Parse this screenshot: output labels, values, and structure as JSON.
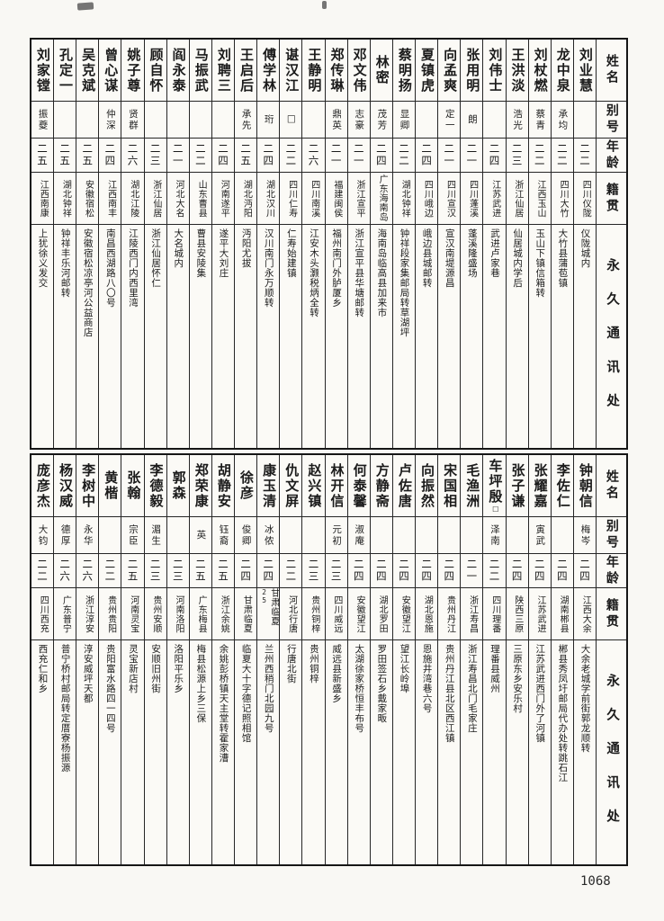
{
  "page": {
    "number": "1068"
  },
  "header_labels": {
    "name": "姓名",
    "alias": "别号",
    "age": "年龄",
    "native": "籍贯",
    "address": "永久通讯处"
  },
  "tables": [
    {
      "persons": [
        {
          "name": "刘业慧",
          "alias": "",
          "age": "二二",
          "native": "四川仪陇",
          "address": "仪陇城内"
        },
        {
          "name": "龙中泉",
          "alias": "承均",
          "age": "二二",
          "native": "四川大竹",
          "address": "大竹县蒲苞镇"
        },
        {
          "name": "刘杖燃",
          "alias": "蔡青",
          "age": "二二",
          "native": "江西玉山",
          "address": "玉山下镇信箱转"
        },
        {
          "name": "王洪淡",
          "alias": "浩光",
          "age": "二三",
          "native": "浙江仙居",
          "address": "仙居城内学后"
        },
        {
          "name": "刘伟士",
          "alias": "",
          "age": "二四",
          "native": "江苏武进",
          "address": "武进卢家巷"
        },
        {
          "name": "张用明",
          "alias": "朗",
          "age": "二一",
          "native": "四川蓬溪",
          "address": "蓬溪隆盛场"
        },
        {
          "name": "向孟爽",
          "alias": "定一",
          "age": "二一",
          "native": "四川宣汉",
          "address": "宣汉南堤源昌"
        },
        {
          "name": "夏镇虎",
          "alias": "",
          "age": "二四",
          "native": "四川峨边",
          "address": "峨边县城邮转"
        },
        {
          "name": "蔡明扬",
          "alias": "显卿",
          "age": "二二",
          "native": "湖北钟祥",
          "address": "钟祥段家集邮局转草湖坪"
        },
        {
          "name": "林密",
          "alias": "茂芳",
          "age": "二四",
          "native": "广东海南岛",
          "address": "海南岛临高县加来市"
        },
        {
          "name": "邓文伟",
          "alias": "志豪",
          "age": "二一",
          "native": "浙江宣平",
          "address": "浙江宣平县华塘邮转"
        },
        {
          "name": "郑传琳",
          "alias": "鼎英",
          "age": "二一",
          "native": "福建闽侯",
          "address": "福州南门外胪厦乡"
        },
        {
          "name": "王静明",
          "alias": "",
          "age": "二六",
          "native": "四川南溪",
          "address": "江安木头灏税炳全转"
        },
        {
          "name": "谌汉江",
          "alias": "□",
          "age": "二二",
          "native": "四川仁寿",
          "address": "仁寿始建镇"
        },
        {
          "name": "傅学林",
          "alias": "珩",
          "age": "二四",
          "native": "湖北汉川",
          "address": "汉川南门永万顺转"
        },
        {
          "name": "王启后",
          "alias": "承先",
          "age": "二五",
          "native": "湖北沔阳",
          "address": "沔阳尤拔"
        },
        {
          "name": "刘聘三",
          "alias": "",
          "age": "二四",
          "native": "河南遂平",
          "address": "遂平大刘庄"
        },
        {
          "name": "马振武",
          "alias": "",
          "age": "二二",
          "native": "山东曹县",
          "address": "曹县安陵集"
        },
        {
          "name": "阎永泰",
          "alias": "",
          "age": "二一",
          "native": "河北大名",
          "address": "大名城内"
        },
        {
          "name": "顾自怀",
          "alias": "",
          "age": "二三",
          "native": "浙江仙居",
          "address": "浙江仙居怀仁"
        },
        {
          "name": "姚子尊",
          "alias": "贤群",
          "age": "二六",
          "native": "湖北江陵",
          "address": "江陵西门内西里湾"
        },
        {
          "name": "曾心谋",
          "alias": "仲深",
          "age": "二四",
          "native": "江西南丰",
          "address": "南昌西湖路八〇号"
        },
        {
          "name": "吴克斌",
          "alias": "",
          "age": "二五",
          "native": "安徽宿松",
          "address": "安徽宿松凉亭河公益商店"
        },
        {
          "name": "孔定一",
          "alias": "",
          "age": "二五",
          "native": "湖北钟祥",
          "address": "钟祥丰乐河邮转"
        },
        {
          "name": "刘家镗",
          "alias": "振夔",
          "age": "二五",
          "native": "江西南康",
          "address": "上犹徐义发交"
        }
      ]
    },
    {
      "persons": [
        {
          "name": "钟朝信",
          "alias": "梅岑",
          "age": "二四",
          "native": "江西大余",
          "address": "大余老城学前街郭龙顺转"
        },
        {
          "name": "李佐仁",
          "alias": "",
          "age": "二四",
          "native": "湖南郴县",
          "address": "郴县秀凤圩邮局代办处转跳石江"
        },
        {
          "name": "张耀嘉",
          "alias": "寅武",
          "age": "二四",
          "native": "江苏武进",
          "address": "江苏武进西门外了河镇"
        },
        {
          "name": "张子谦",
          "alias": "",
          "age": "二四",
          "native": "陕西三原",
          "address": "三原东乡安乐村"
        },
        {
          "name": "车坪殷",
          "name_note": "□",
          "alias": "泽南",
          "age": "二二",
          "native": "四川理番",
          "address": "理番县威州"
        },
        {
          "name": "毛渔洲",
          "alias": "",
          "age": "二一",
          "native": "浙江寿昌",
          "address": "浙江寿昌北门毛家庄"
        },
        {
          "name": "宋国相",
          "alias": "",
          "age": "二四",
          "native": "贵州丹江",
          "address": "贵州丹江县北区西江镇"
        },
        {
          "name": "向振然",
          "alias": "",
          "age": "二四",
          "native": "湖北恩施",
          "address": "恩施井湾巷六号"
        },
        {
          "name": "卢佐唐",
          "alias": "",
          "age": "二四",
          "native": "安徽望江",
          "address": "望江长岭埠"
        },
        {
          "name": "方静斋",
          "alias": "",
          "age": "二四",
          "native": "湖北罗田",
          "address": "罗田签石乡戴家畈"
        },
        {
          "name": "何泰馨",
          "alias": "淑庵",
          "age": "二四",
          "native": "安徽望江",
          "address": "太湖徐家桥恒丰布号"
        },
        {
          "name": "林开信",
          "alias": "元初",
          "age": "二三",
          "native": "四川威远",
          "address": "威远县新盛乡"
        },
        {
          "name": "赵兴镇",
          "alias": "",
          "age": "二三",
          "native": "贵州铜梓",
          "address": "贵州铜梓"
        },
        {
          "name": "仇文屏",
          "alias": "",
          "age": "二二",
          "native": "河北行唐",
          "address": "行唐北街"
        },
        {
          "name": "康玉清",
          "alias": "冰侬",
          "age": "二四",
          "native": "甘肃临夏",
          "native_note": "25",
          "address": "兰州西稍门北园九号"
        },
        {
          "name": "徐彦",
          "alias": "俊卿",
          "age": "二四",
          "native": "甘肃临夏",
          "address": "临夏大十字德记照相馆"
        },
        {
          "name": "胡静安",
          "alias": "钰裔",
          "age": "二五",
          "native": "浙江余姚",
          "address": "余姚彭桥镇天主堂转霍家漕"
        },
        {
          "name": "郑荣康",
          "alias": "英",
          "age": "二五",
          "native": "广东梅县",
          "address": "梅县松源上乡三保"
        },
        {
          "name": "郭森",
          "alias": "",
          "age": "二三",
          "native": "河南洛阳",
          "address": "洛阳平乐乡"
        },
        {
          "name": "李德毅",
          "alias": "湄生",
          "age": "二三",
          "native": "贵州安顺",
          "address": "安顺旧州街"
        },
        {
          "name": "张翰",
          "alias": "宗臣",
          "age": "二五",
          "native": "河南灵宝",
          "address": "灵宝新店村"
        },
        {
          "name": "黄楷",
          "alias": "",
          "age": "二二",
          "native": "贵州贵阳",
          "address": "贵阳富水路四一四号"
        },
        {
          "name": "李树中",
          "alias": "永华",
          "age": "二六",
          "native": "浙江淳安",
          "address": "淳安威坪天都"
        },
        {
          "name": "杨汉威",
          "alias": "德厚",
          "age": "二六",
          "native": "广东普宁",
          "address": "普宁桥村邮局转定厝寮杨振源"
        },
        {
          "name": "庞彦杰",
          "alias": "大钧",
          "age": "二二",
          "native": "四川西充",
          "address": "西充仁和乡"
        }
      ]
    }
  ]
}
